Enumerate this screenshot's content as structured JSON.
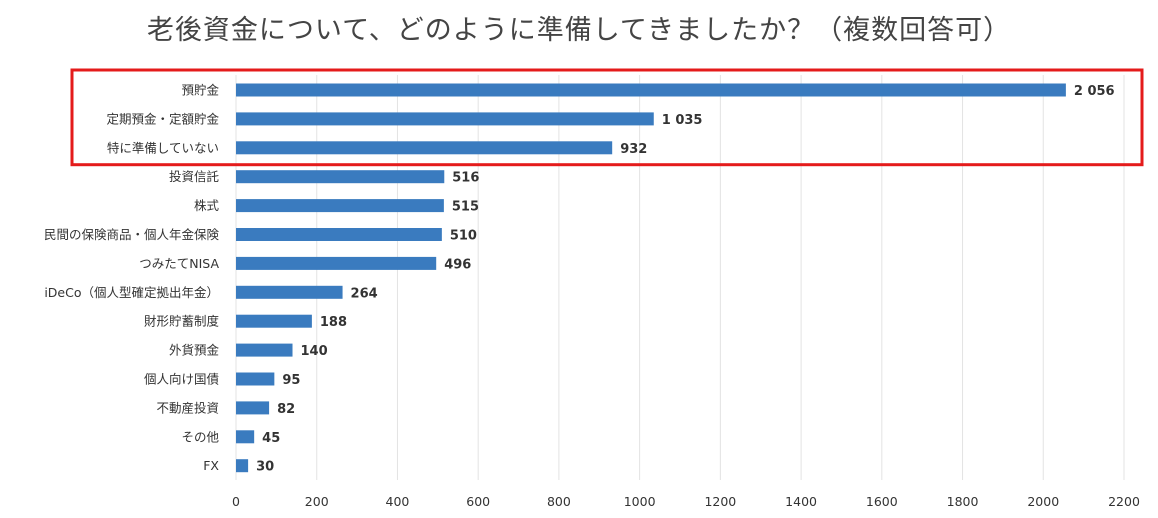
{
  "chart_data": {
    "type": "bar",
    "orientation": "horizontal",
    "title": "老後資金について、どのように準備してきましたか？（複数回答可）",
    "categories": [
      "預貯金",
      "定期預金・定額貯金",
      "特に準備していない",
      "投資信託",
      "株式",
      "民間の保険商品・個人年金保険",
      "つみたてNISA",
      "iDeCo（個人型確定拠出年金）",
      "財形貯蓄制度",
      "外貨預金",
      "個人向け国債",
      "不動産投資",
      "その他",
      "FX"
    ],
    "values": [
      2056,
      1035,
      932,
      516,
      515,
      510,
      496,
      264,
      188,
      140,
      95,
      82,
      45,
      30
    ],
    "value_labels": [
      "2 056",
      "1 035",
      "932",
      "516",
      "515",
      "510",
      "496",
      "264",
      "188",
      "140",
      "95",
      "82",
      "45",
      "30"
    ],
    "xlim": [
      0,
      2200
    ],
    "xticks": [
      "0",
      "200",
      "400",
      "600",
      "800",
      "1000",
      "1200",
      "1400",
      "1600",
      "1800",
      "2000",
      "2200"
    ],
    "xtick_values": [
      0,
      200,
      400,
      600,
      800,
      1000,
      1200,
      1400,
      1600,
      1800,
      2000,
      2200
    ],
    "grid": true,
    "highlight_top_n": 3,
    "colors": {
      "bar": "#3a7bbf",
      "grid": "#e3e3e3",
      "highlight": "#e41b1b"
    }
  }
}
